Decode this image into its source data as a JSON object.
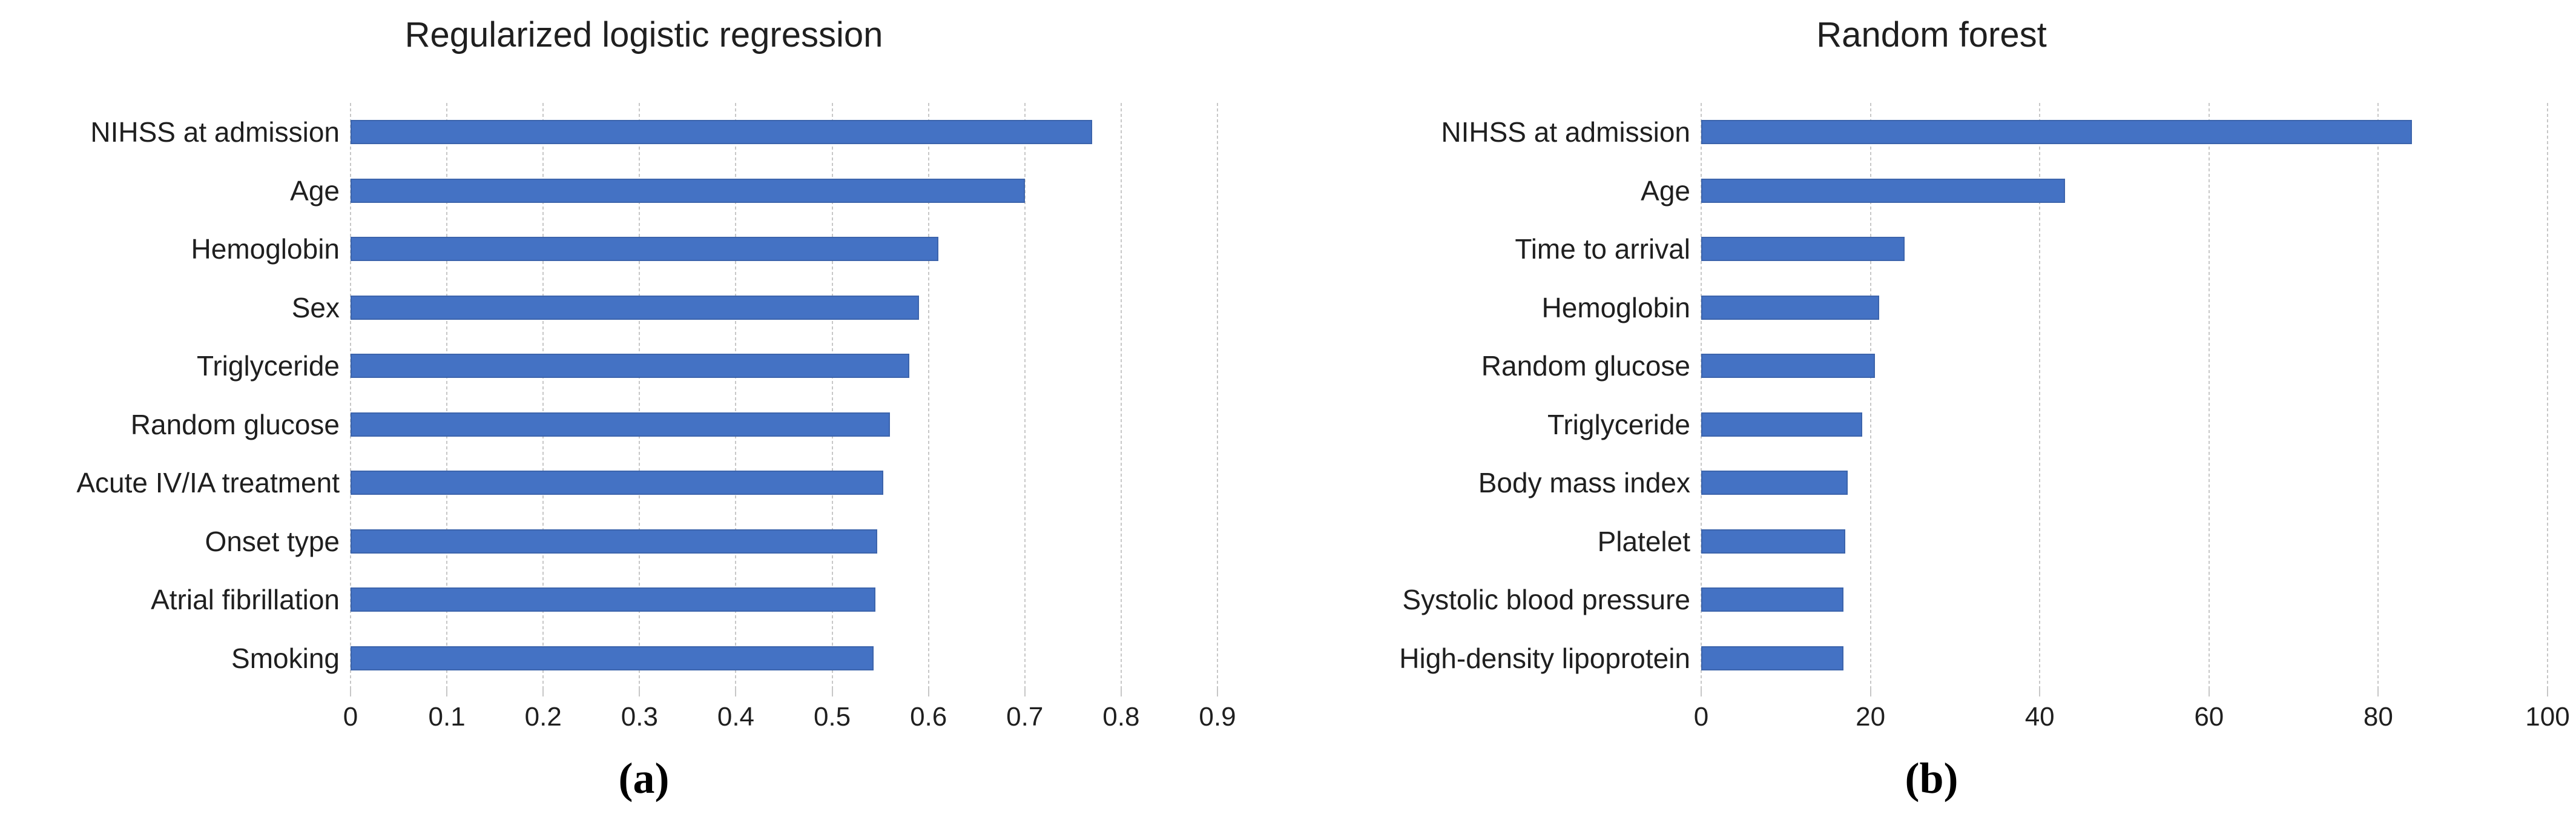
{
  "colors": {
    "bar": "#4472C4",
    "bar_border": "#3C64AC",
    "gridline": "#C7C7C7",
    "text": "#1F1F1F"
  },
  "chart_data": [
    {
      "type": "bar",
      "orientation": "horizontal",
      "title": "Regularized logistic regression",
      "caption": "(a)",
      "categories": [
        "NIHSS at admission",
        "Age",
        "Hemoglobin",
        "Sex",
        "Triglyceride",
        "Random glucose",
        "Acute IV/IA treatment",
        "Onset type",
        "Atrial fibrillation",
        "Smoking"
      ],
      "values": [
        0.77,
        0.7,
        0.61,
        0.59,
        0.58,
        0.56,
        0.553,
        0.547,
        0.545,
        0.543
      ],
      "xlabel": "",
      "ylabel": "",
      "xlim": [
        0,
        0.9
      ],
      "xticks": [
        0,
        0.1,
        0.2,
        0.3,
        0.4,
        0.5,
        0.6,
        0.7,
        0.8,
        0.9
      ],
      "xtick_labels": [
        "0",
        "0.1",
        "0.2",
        "0.3",
        "0.4",
        "0.5",
        "0.6",
        "0.7",
        "0.8",
        "0.9"
      ],
      "grid": true,
      "legend": null
    },
    {
      "type": "bar",
      "orientation": "horizontal",
      "title": "Random forest",
      "caption": "(b)",
      "categories": [
        "NIHSS at admission",
        "Age",
        "Time to arrival",
        "Hemoglobin",
        "Random glucose",
        "Triglyceride",
        "Body mass index",
        "Platelet",
        "Systolic blood pressure",
        "High-density lipoprotein"
      ],
      "values": [
        84,
        43,
        24,
        21,
        20.5,
        19,
        17.3,
        17,
        16.8,
        16.8
      ],
      "xlabel": "",
      "ylabel": "",
      "xlim": [
        0,
        100
      ],
      "xticks": [
        0,
        20,
        40,
        60,
        80,
        100
      ],
      "xtick_labels": [
        "0",
        "20",
        "40",
        "60",
        "80",
        "100"
      ],
      "grid": true,
      "legend": null
    }
  ]
}
